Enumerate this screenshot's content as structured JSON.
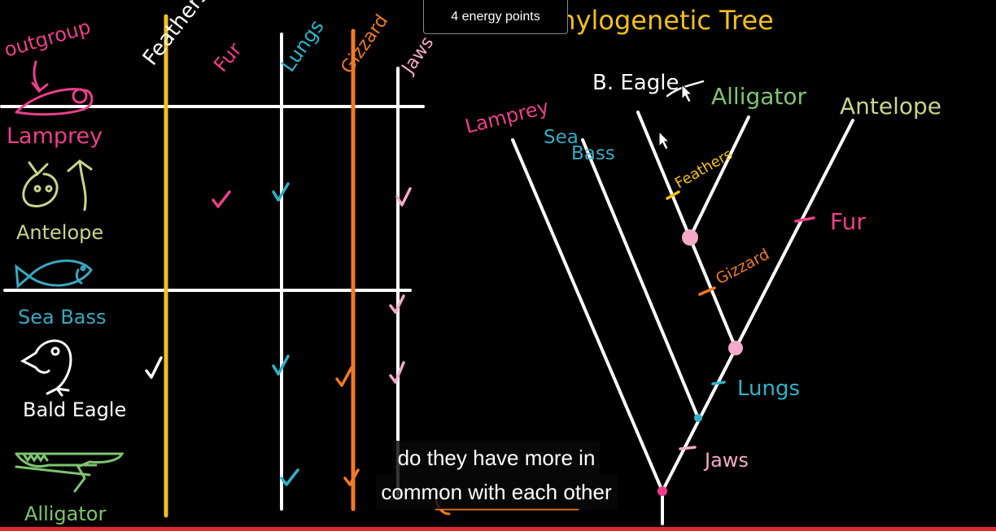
{
  "energy_points": "4 energy points",
  "board": {
    "title": "Phylogenetic Tree",
    "table": {
      "outgroup_note": "outgroup",
      "columns": [
        "Feathers",
        "Fur",
        "Lungs",
        "Gizzard",
        "Jaws"
      ],
      "rows": [
        "Lamprey",
        "Antelope",
        "Sea Bass",
        "Bald Eagle",
        "Alligator"
      ]
    },
    "tree": {
      "taxa": [
        "Lamprey",
        "Sea Bass",
        "B. Eagle",
        "Alligator",
        "Antelope"
      ],
      "traits": [
        "Feathers",
        "Fur",
        "Gizzard",
        "Lungs",
        "Jaws"
      ]
    }
  },
  "caption": {
    "line1": "do they have more in",
    "line2": "common with each other"
  },
  "video": {
    "progress": 1.0
  },
  "colors": {
    "feathers": "#f2c01b",
    "fur": "#ec3f8a",
    "lungs": "#2fb3c8",
    "gizzard": "#f07a25",
    "jaws": "#f4aac8",
    "lamprey": "#ec3f8a",
    "antelope": "#c8d58a",
    "seabass": "#3aa8c0",
    "eagle": "#ffffff",
    "alligator": "#7fc471",
    "title": "#f2c01b"
  }
}
